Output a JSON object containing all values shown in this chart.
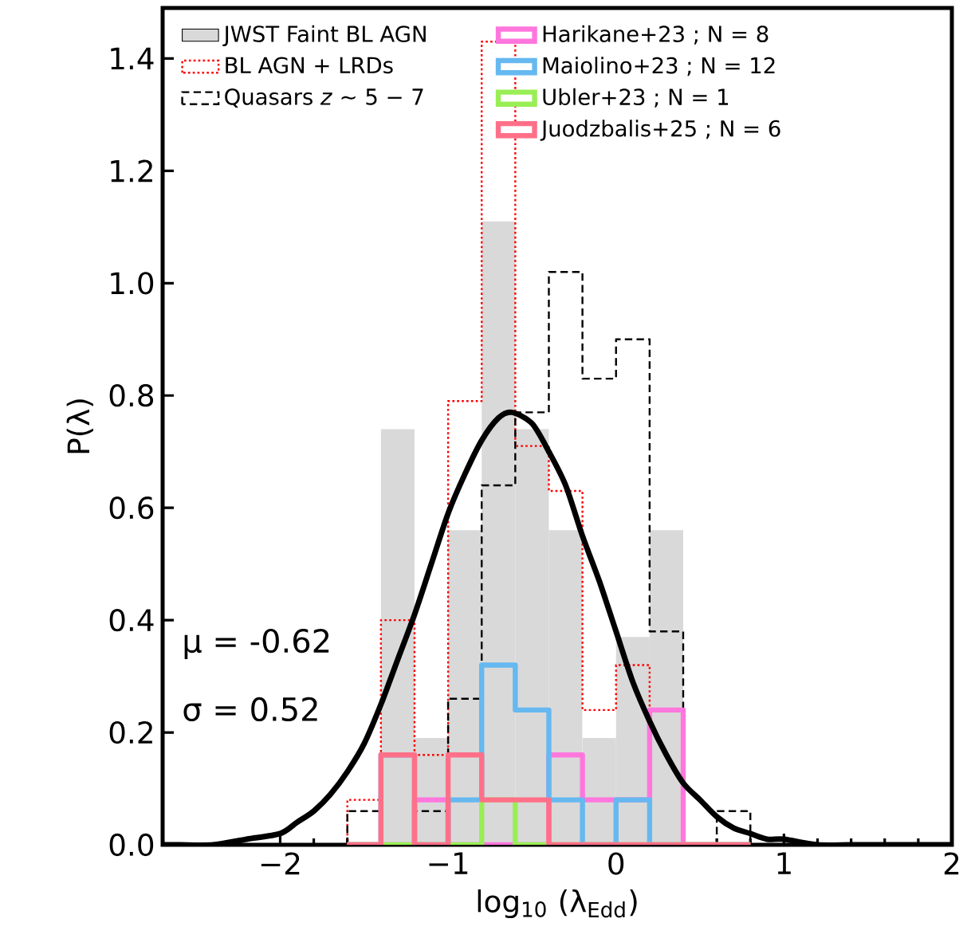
{
  "chart_data": {
    "type": "histogram",
    "xlabel": "log$_{10}$ (λ$_{Edd}$)",
    "ylabel": "P(λ)",
    "bins": [
      -1.6,
      -1.4,
      -1.2,
      -1.0,
      -0.8,
      -0.6,
      -0.4,
      -0.2,
      0.0,
      0.2,
      0.4,
      0.6,
      0.8
    ],
    "series": [
      {
        "name": "JWST Faint BL AGN",
        "color": "#d9d9d9",
        "values": [
          0,
          0.74,
          0.19,
          0.56,
          1.11,
          0.74,
          0.56,
          0.19,
          0.37,
          0.56,
          0,
          0
        ]
      },
      {
        "name": "BL AGN + LRDs",
        "color": "#ff0000",
        "line_style": "dotted",
        "values": [
          0.08,
          0.4,
          0.16,
          0.79,
          1.43,
          0.71,
          0.63,
          0.24,
          0.32,
          0.24,
          0,
          0
        ]
      },
      {
        "name": "Quasars *z* ~ 5 − 7",
        "color": "#000000",
        "line_style": "dashed",
        "values": [
          0.06,
          0,
          0.06,
          0.26,
          0.64,
          0.77,
          1.02,
          0.83,
          0.9,
          0.38,
          0,
          0.06
        ]
      },
      {
        "name": "Harikane+23 ; N = 8",
        "color": "#ff77dd",
        "line_style": "solid",
        "values": [
          0,
          0,
          0.08,
          0,
          0,
          0,
          0.16,
          0.08,
          0.08,
          0.24,
          0,
          0
        ]
      },
      {
        "name": "Maiolino+23 ; N = 12",
        "color": "#66b8f0",
        "line_style": "solid",
        "values": [
          0,
          0.16,
          0,
          0.08,
          0.32,
          0.24,
          0.08,
          0,
          0.08,
          0,
          0,
          0
        ]
      },
      {
        "name": "Ubler+23 ; N = 1",
        "color": "#99ee55",
        "line_style": "solid",
        "values": [
          0,
          0,
          0,
          0,
          0.08,
          0,
          0,
          0,
          0,
          0,
          0,
          0
        ]
      },
      {
        "name": "Juodzbalis+25 ; N = 6",
        "color": "#ff7088",
        "line_style": "solid",
        "values": [
          0,
          0.16,
          0,
          0.16,
          0.08,
          0.08,
          0,
          0,
          0,
          0,
          0,
          0
        ]
      },
      {
        "type": "line",
        "color": "#000000",
        "line_style": "solid",
        "x": [
          -2.7,
          -2.6,
          -2.4,
          -2.2,
          -2.0,
          -1.9,
          -1.8,
          -1.7,
          -1.6,
          -1.5,
          -1.4,
          -1.3,
          -1.2,
          -1.1,
          -1.0,
          -0.9,
          -0.8,
          -0.7,
          -0.62,
          -0.5,
          -0.4,
          -0.3,
          -0.2,
          -0.1,
          0.0,
          0.1,
          0.2,
          0.3,
          0.4,
          0.5,
          0.6,
          0.7,
          0.8,
          0.9,
          1.0,
          1.2,
          1.4,
          1.6,
          1.8,
          2.0
        ],
        "values": [
          0,
          0,
          0,
          0.01,
          0.02,
          0.04,
          0.06,
          0.09,
          0.13,
          0.18,
          0.25,
          0.33,
          0.41,
          0.5,
          0.59,
          0.66,
          0.72,
          0.76,
          0.77,
          0.75,
          0.7,
          0.64,
          0.55,
          0.47,
          0.38,
          0.29,
          0.22,
          0.16,
          0.11,
          0.08,
          0.05,
          0.03,
          0.02,
          0.01,
          0.01,
          0,
          0,
          0,
          0,
          0
        ]
      }
    ],
    "annotations": [
      "μ = -0.62",
      "σ = 0.52"
    ],
    "xlim": [
      -2.7,
      2.0
    ],
    "ylim": [
      0,
      1.49
    ],
    "xticks": [
      {
        "value": -2,
        "label": "−2"
      },
      {
        "value": -1,
        "label": "−1"
      },
      {
        "value": 0,
        "label": "0"
      },
      {
        "value": 1,
        "label": "1"
      },
      {
        "value": 2,
        "label": "2"
      }
    ],
    "yticks": [
      {
        "value": 0,
        "label": "0.0"
      },
      {
        "value": 0.2,
        "label": "0.2"
      },
      {
        "value": 0.4,
        "label": "0.4"
      },
      {
        "value": 0.6,
        "label": "0.6"
      },
      {
        "value": 0.8,
        "label": "0.8"
      },
      {
        "value": 1.0,
        "label": "1.0"
      },
      {
        "value": 1.2,
        "label": "1.2"
      },
      {
        "value": 1.4,
        "label": "1.4"
      }
    ],
    "legend": "top left"
  }
}
